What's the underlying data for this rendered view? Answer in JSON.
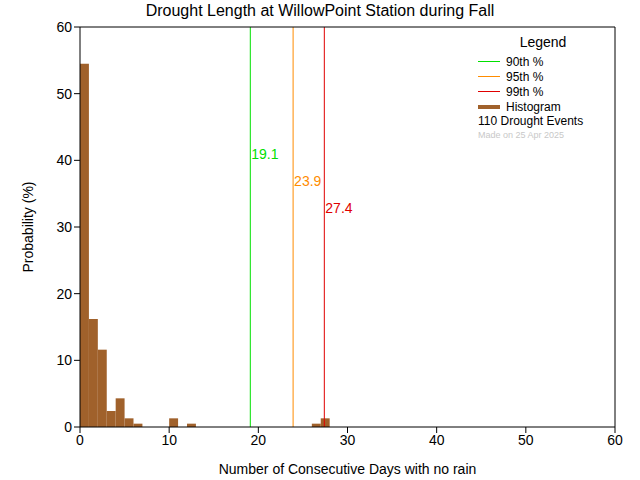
{
  "chart_data": {
    "type": "histogram",
    "title": "Drought Length at WillowPoint Station during Fall",
    "x_label": "Number of Consecutive Days with no rain",
    "y_label": "Probability (%)",
    "bins": [
      0,
      1,
      2,
      3,
      4,
      5,
      6,
      7,
      8,
      9,
      10,
      11,
      12,
      13,
      14,
      15,
      16,
      17,
      18,
      19,
      20,
      21,
      22,
      23,
      24,
      25,
      26,
      27,
      28
    ],
    "values": [
      54.5,
      16.2,
      11.6,
      2.4,
      4.3,
      1.3,
      0.5,
      0,
      0,
      0,
      1.3,
      0,
      0.5,
      0,
      0,
      0,
      0,
      0,
      0,
      0,
      0,
      0,
      0,
      0,
      0,
      0,
      0.5,
      1.3
    ],
    "color": "#a0612b",
    "name": "Histogram",
    "xlim": [
      0,
      60
    ],
    "xticks": [
      0,
      10,
      20,
      30,
      40,
      50,
      60
    ],
    "ylim": [
      0,
      60
    ],
    "yticks": [
      0,
      10,
      20,
      30,
      40,
      50,
      60
    ],
    "grid": false,
    "legend": "upper right",
    "legend_title": "Legend",
    "reference_lines": [
      {
        "name": "90th %",
        "value": 19.1,
        "color": "#00e000"
      },
      {
        "name": "95th %",
        "value": 23.9,
        "color": "#ff8c00"
      },
      {
        "name": "99th %",
        "value": 27.4,
        "color": "#e00000"
      }
    ],
    "annotations": [
      "110 Drought Events",
      "Made on 25 Apr 2025"
    ]
  }
}
